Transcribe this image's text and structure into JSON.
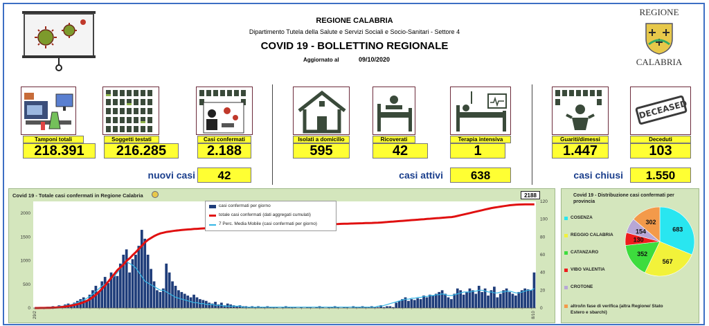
{
  "header": {
    "region": "REGIONE CALABRIA",
    "department": "Dipartimento Tutela della Salute e Servizi Sociali e Socio-Sanitari - Settore 4",
    "title": "COVID 19 - BOLLETTINO REGIONALE",
    "updated_label": "Aggiornato al",
    "updated_date": "09/10/2020",
    "logo_top": "REGIONE",
    "logo_bottom": "CALABRIA"
  },
  "stats": {
    "tamponi": {
      "label": "Tamponi totali",
      "value": "218.391",
      "icon": "lab-equipment-icon"
    },
    "soggetti": {
      "label": "Soggetti testati",
      "value": "216.285",
      "icon": "people-grid-icon"
    },
    "confermati": {
      "label": "Casi confermati",
      "value": "2.188",
      "icon": "infected-person-icon"
    },
    "isolati": {
      "label": "Isolati a domicilio",
      "value": "595",
      "icon": "house-icon"
    },
    "ricoverati": {
      "label": "Ricoverati",
      "value": "42",
      "icon": "hospital-bed-icon"
    },
    "terapia": {
      "label": "Terapia intensiva",
      "value": "1",
      "icon": "icu-bed-icon"
    },
    "guariti": {
      "label": "Guariti/dimessi",
      "value": "1.447",
      "icon": "recovered-person-icon"
    },
    "deceduti": {
      "label": "Deceduti",
      "value": "103",
      "icon": "deceased-stamp-icon",
      "stamp_text": "DECEASED"
    }
  },
  "summary": {
    "nuovi_label": "nuovi casi",
    "nuovi_value": "42",
    "attivi_label": "casi attivi",
    "attivi_value": "638",
    "chiusi_label": "casi chiusi",
    "chiusi_value": "1.550"
  },
  "colors": {
    "accent_yellow": "#ffff33",
    "summary_text": "#1a3e8c",
    "panel_bg": "#d4e6bd",
    "bar_color": "#1f3d7a",
    "cumulative_color": "#e01010",
    "moving_avg_color": "#33b5e5"
  },
  "chart_data": [
    {
      "type": "bar",
      "title": "Covid 19 - Totale casi confermati in Regione Calabria",
      "annotation": "2188",
      "legend": [
        "casi confermati per giorno",
        "totale casi confermati (dati aggregati cumulati)",
        "7 Perc. Media Mobile (casi confermati per giorno)"
      ],
      "y_left_ticks": [
        0,
        500,
        1000,
        1500,
        2000
      ],
      "y_right_ticks": [
        0,
        20,
        40,
        60,
        80,
        100,
        120
      ],
      "ylim_left": [
        0,
        2250
      ],
      "ylim_right": [
        0,
        120
      ],
      "x_first_label": "29/2",
      "x_last_label": "8/10",
      "series": [
        {
          "name": "casi confermati per giorno",
          "axis": "right",
          "values": [
            0,
            0,
            0,
            1,
            0,
            1,
            2,
            1,
            3,
            2,
            4,
            5,
            3,
            6,
            8,
            10,
            12,
            9,
            15,
            20,
            25,
            18,
            30,
            35,
            28,
            40,
            38,
            36,
            50,
            60,
            66,
            40,
            55,
            60,
            70,
            88,
            78,
            60,
            44,
            30,
            20,
            18,
            22,
            50,
            40,
            30,
            25,
            20,
            18,
            16,
            14,
            12,
            15,
            12,
            10,
            9,
            8,
            6,
            5,
            7,
            4,
            6,
            3,
            5,
            4,
            3,
            2,
            3,
            2,
            2,
            1,
            2,
            1,
            2,
            1,
            1,
            2,
            1,
            1,
            1,
            0,
            1,
            2,
            1,
            1,
            1,
            0,
            1,
            0,
            1,
            1,
            0,
            1,
            2,
            1,
            0,
            1,
            1,
            2,
            1,
            0,
            1,
            1,
            0,
            2,
            1,
            1,
            2,
            1,
            1,
            2,
            1,
            1,
            3,
            1,
            2,
            2,
            1,
            6,
            8,
            10,
            12,
            8,
            10,
            9,
            11,
            10,
            14,
            12,
            15,
            14,
            16,
            18,
            20,
            16,
            12,
            10,
            16,
            22,
            20,
            15,
            18,
            22,
            20,
            16,
            25,
            18,
            22,
            14,
            20,
            24,
            12,
            16,
            20,
            22,
            18,
            16,
            14,
            18,
            20,
            22,
            21,
            20,
            40
          ]
        },
        {
          "name": "totale casi confermati (dati aggregati cumulati)",
          "axis": "left",
          "values": [
            0,
            0,
            1,
            2,
            3,
            5,
            7,
            10,
            15,
            22,
            30,
            40,
            52,
            66,
            82,
            100,
            122,
            150,
            185,
            230,
            285,
            345,
            410,
            480,
            560,
            640,
            720,
            800,
            860,
            920,
            1000,
            1050,
            1120,
            1180,
            1250,
            1320,
            1390,
            1440,
            1480,
            1520,
            1550,
            1575,
            1590,
            1605,
            1615,
            1625,
            1633,
            1640,
            1646,
            1652,
            1658,
            1663,
            1668,
            1672,
            1676,
            1680,
            1683,
            1686,
            1689,
            1692,
            1695,
            1698,
            1700,
            1702,
            1704,
            1706,
            1708,
            1710,
            1712,
            1714,
            1716,
            1718,
            1720,
            1722,
            1724,
            1726,
            1728,
            1730,
            1732,
            1734,
            1736,
            1738,
            1740,
            1742,
            1744,
            1746,
            1748,
            1750,
            1752,
            1754,
            1756,
            1758,
            1760,
            1762,
            1764,
            1766,
            1768,
            1770,
            1772,
            1774,
            1776,
            1778,
            1780,
            1782,
            1784,
            1786,
            1788,
            1790,
            1792,
            1794,
            1796,
            1798,
            1800,
            1805,
            1810,
            1815,
            1820,
            1825,
            1830,
            1835,
            1840,
            1845,
            1850,
            1855,
            1860,
            1865,
            1870,
            1875,
            1880,
            1885,
            1890,
            1895,
            1900,
            1905,
            1910,
            1915,
            1920,
            1930,
            1945,
            1960,
            1975,
            1990,
            2005,
            2020,
            2035,
            2050,
            2065,
            2080,
            2095,
            2110,
            2120,
            2130,
            2140,
            2150,
            2160,
            2170,
            2175,
            2180,
            2184,
            2186,
            2187,
            2188,
            2188,
            2188
          ]
        },
        {
          "name": "7 Perc. Media Mobile (casi confermati per giorno)",
          "axis": "right",
          "values": [
            0,
            0,
            0,
            0,
            1,
            1,
            1,
            1,
            2,
            2,
            3,
            3,
            4,
            5,
            6,
            8,
            9,
            11,
            13,
            16,
            19,
            22,
            25,
            27,
            30,
            33,
            36,
            40,
            45,
            50,
            52,
            50,
            48,
            45,
            40,
            35,
            30,
            28,
            26,
            24,
            22,
            20,
            20,
            18,
            16,
            14,
            12,
            11,
            10,
            9,
            8,
            7,
            6,
            6,
            5,
            5,
            4,
            4,
            4,
            3,
            3,
            3,
            2,
            2,
            2,
            2,
            2,
            2,
            1,
            1,
            1,
            1,
            1,
            1,
            1,
            1,
            1,
            1,
            1,
            1,
            1,
            1,
            1,
            1,
            1,
            1,
            1,
            1,
            1,
            1,
            1,
            1,
            1,
            1,
            1,
            1,
            1,
            1,
            1,
            1,
            1,
            1,
            1,
            1,
            1,
            1,
            1,
            1,
            1,
            1,
            1,
            1,
            2,
            2,
            3,
            4,
            5,
            6,
            7,
            8,
            9,
            10,
            10,
            11,
            11,
            12,
            12,
            13,
            13,
            14,
            14,
            15,
            15,
            16,
            15,
            14,
            14,
            15,
            16,
            17,
            18,
            18,
            18,
            19,
            19,
            20,
            20,
            19,
            18,
            18,
            17,
            17,
            18,
            18,
            19,
            19,
            18,
            17,
            17,
            18,
            19,
            20,
            20,
            22
          ]
        }
      ]
    },
    {
      "type": "pie",
      "title": "Covid 19 - Distribuzione casi confermati per provincia",
      "slices": [
        {
          "name": "COSENZA",
          "value": 683,
          "color": "#29e6f0"
        },
        {
          "name": "REGGIO CALABRIA",
          "value": 567,
          "color": "#f2f23a"
        },
        {
          "name": "CATANZARO",
          "value": 352,
          "color": "#3ddc3d"
        },
        {
          "name": "VIBO VALENTIA",
          "value": 130,
          "color": "#ee1c1c"
        },
        {
          "name": "CROTONE",
          "value": 154,
          "color": "#b7a7d6"
        },
        {
          "name": "altro/in fase di verifica (altra Regione/ Stato Estero e sbarchi)",
          "value": 302,
          "color": "#f39a4a"
        }
      ]
    }
  ]
}
